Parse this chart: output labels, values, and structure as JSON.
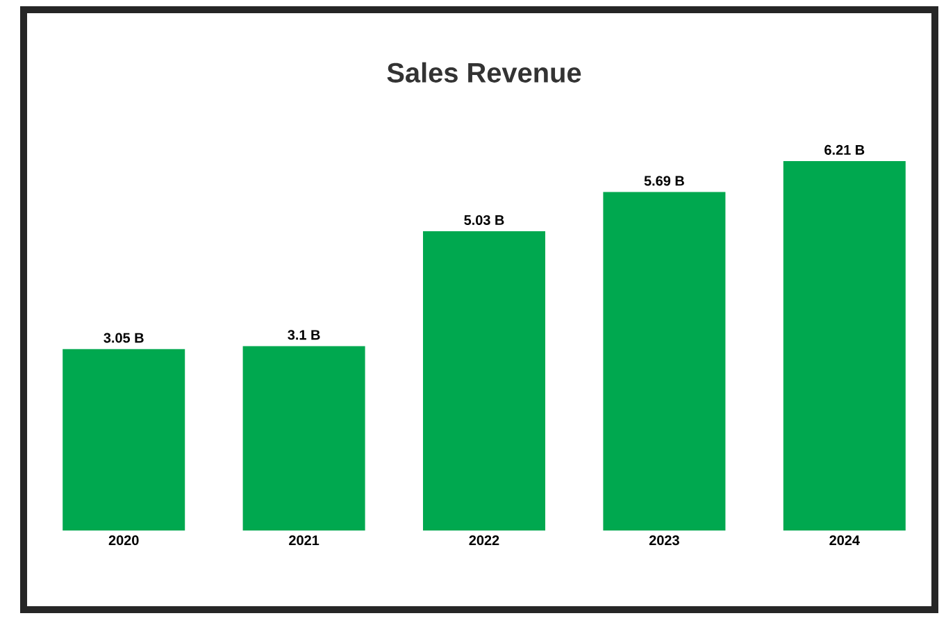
{
  "chart_data": {
    "type": "bar",
    "title": "Sales Revenue",
    "categories": [
      "2020",
      "2021",
      "2022",
      "2023",
      "2024"
    ],
    "values": [
      3.05,
      3.1,
      5.03,
      5.69,
      6.21
    ],
    "value_labels": [
      "3.05 B",
      "3.1 B",
      "5.03 B",
      "5.69 B",
      "6.21 B"
    ],
    "color": "#00a84f"
  }
}
